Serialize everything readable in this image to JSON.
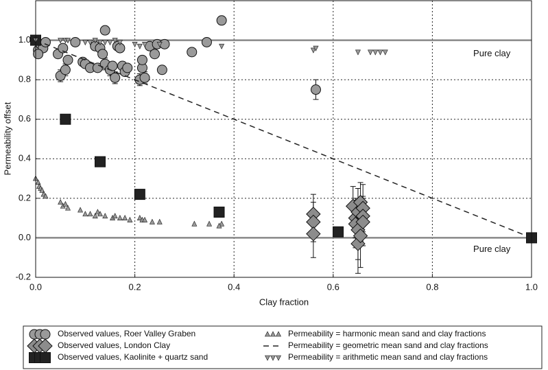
{
  "chart_data": {
    "type": "scatter",
    "xlabel": "Clay fraction",
    "ylabel": "Permeability offset",
    "xlim": [
      0,
      1
    ],
    "ylim": [
      -0.2,
      1.2
    ],
    "xticks": [
      {
        "value": 0,
        "label": "0.0"
      },
      0.2,
      0.4,
      0.6,
      0.8,
      {
        "value": 1,
        "label": "1.0"
      }
    ],
    "yticks": [
      -0.2,
      {
        "value": 0,
        "label": "0.0"
      },
      0.2,
      0.4,
      0.6,
      0.8,
      {
        "value": 1,
        "label": "1.0"
      }
    ],
    "grid": true,
    "reference_lines": [
      0,
      1
    ],
    "annotations": [
      {
        "text": "Pure clay",
        "x": 0.92,
        "y": 0.93
      },
      {
        "text": "Pure clay",
        "x": 0.92,
        "y": -0.06
      }
    ],
    "series": [
      {
        "name": "Observed values, Roer Valley Graben",
        "marker": "o",
        "color": "#9a9a9a",
        "x": [
          0.005,
          0.01,
          0.015,
          0.02,
          0.005,
          0.045,
          0.05,
          0.055,
          0.06,
          0.065,
          0.08,
          0.095,
          0.1,
          0.11,
          0.12,
          0.125,
          0.13,
          0.135,
          0.14,
          0.14,
          0.15,
          0.155,
          0.16,
          0.165,
          0.17,
          0.175,
          0.18,
          0.185,
          0.21,
          0.215,
          0.22,
          0.215,
          0.23,
          0.24,
          0.245,
          0.255,
          0.26,
          0.315,
          0.345,
          0.375,
          0.565
        ],
        "y": [
          0.95,
          0.98,
          0.96,
          0.99,
          0.93,
          0.93,
          0.82,
          0.96,
          0.85,
          0.9,
          0.99,
          0.89,
          0.88,
          0.86,
          0.97,
          0.86,
          0.96,
          0.93,
          1.05,
          0.88,
          0.85,
          0.87,
          0.81,
          0.97,
          0.96,
          0.87,
          0.84,
          0.86,
          0.8,
          0.86,
          0.81,
          0.9,
          0.97,
          0.93,
          0.98,
          0.85,
          0.98,
          0.94,
          0.99,
          1.1,
          0.75
        ],
        "errors": [
          0.02,
          0.02,
          0.02,
          0.02,
          0.02,
          0.02,
          0.03,
          0.02,
          0.03,
          0.02,
          0.02,
          0.02,
          0.02,
          0.02,
          0.02,
          0.02,
          0.02,
          0.02,
          0.02,
          0.03,
          0.03,
          0.02,
          0.03,
          0.02,
          0.02,
          0.02,
          0.02,
          0.02,
          0.03,
          0.02,
          0.03,
          0.02,
          0.02,
          0.02,
          0.02,
          0.02,
          0.02,
          0.02,
          0.02,
          0.02,
          0.05
        ]
      },
      {
        "name": "Observed values, London Clay",
        "marker": "D",
        "color": "#8c8c8c",
        "x": [
          0.56,
          0.56,
          0.56,
          0.64,
          0.645,
          0.645,
          0.65,
          0.65,
          0.65,
          0.655,
          0.655,
          0.66,
          0.66,
          0.66
        ],
        "y": [
          0.12,
          0.08,
          0.02,
          0.16,
          0.1,
          0.07,
          0.04,
          0.13,
          -0.03,
          0.18,
          0.01,
          0.15,
          0.11,
          0.08
        ],
        "errors": [
          0.1,
          0.1,
          0.12,
          0.1,
          0.1,
          0.12,
          0.15,
          0.12,
          0.15,
          0.1,
          0.16,
          0.12,
          0.1,
          0.12
        ]
      },
      {
        "name": "Observed values, Kaolinite + quartz sand",
        "marker": "s",
        "color": "#222222",
        "x": [
          0.0,
          0.06,
          0.13,
          0.21,
          0.37,
          0.61,
          1.0
        ],
        "y": [
          1.0,
          0.6,
          0.385,
          0.22,
          0.13,
          0.03,
          0.0
        ]
      },
      {
        "name": "Permeability = harmonic mean sand and clay fractions",
        "marker": "^",
        "color": "#9a9a9a",
        "x": [
          0.0,
          0.005,
          0.007,
          0.01,
          0.013,
          0.016,
          0.02,
          0.05,
          0.055,
          0.06,
          0.065,
          0.09,
          0.1,
          0.11,
          0.12,
          0.125,
          0.13,
          0.14,
          0.155,
          0.16,
          0.17,
          0.18,
          0.19,
          0.21,
          0.215,
          0.22,
          0.235,
          0.25,
          0.32,
          0.35,
          0.375,
          0.37
        ],
        "y": [
          0.3,
          0.28,
          0.26,
          0.25,
          0.24,
          0.22,
          0.21,
          0.18,
          0.16,
          0.17,
          0.15,
          0.14,
          0.12,
          0.12,
          0.11,
          0.13,
          0.12,
          0.11,
          0.1,
          0.11,
          0.1,
          0.1,
          0.09,
          0.1,
          0.09,
          0.09,
          0.08,
          0.08,
          0.07,
          0.07,
          0.07,
          0.06
        ]
      },
      {
        "name": "Permeability = geometric mean sand and clay fractions",
        "line": "dashed",
        "color": "#222222",
        "x": [
          0,
          1
        ],
        "y": [
          1,
          0
        ]
      },
      {
        "name": "Permeability = arithmetic mean sand and clay fractions",
        "marker": "v",
        "color": "#9a9a9a",
        "x": [
          0.0,
          0.05,
          0.06,
          0.065,
          0.1,
          0.11,
          0.12,
          0.13,
          0.14,
          0.15,
          0.16,
          0.17,
          0.2,
          0.21,
          0.22,
          0.25,
          0.375,
          0.56,
          0.565,
          0.65,
          0.675,
          0.685,
          0.695,
          0.705
        ],
        "y": [
          1.0,
          1.0,
          1.0,
          1.0,
          0.99,
          0.99,
          1.0,
          0.99,
          0.99,
          0.99,
          1.0,
          0.99,
          0.98,
          0.97,
          0.98,
          0.98,
          0.97,
          0.95,
          0.96,
          0.94,
          0.94,
          0.94,
          0.94,
          0.94
        ]
      }
    ]
  }
}
